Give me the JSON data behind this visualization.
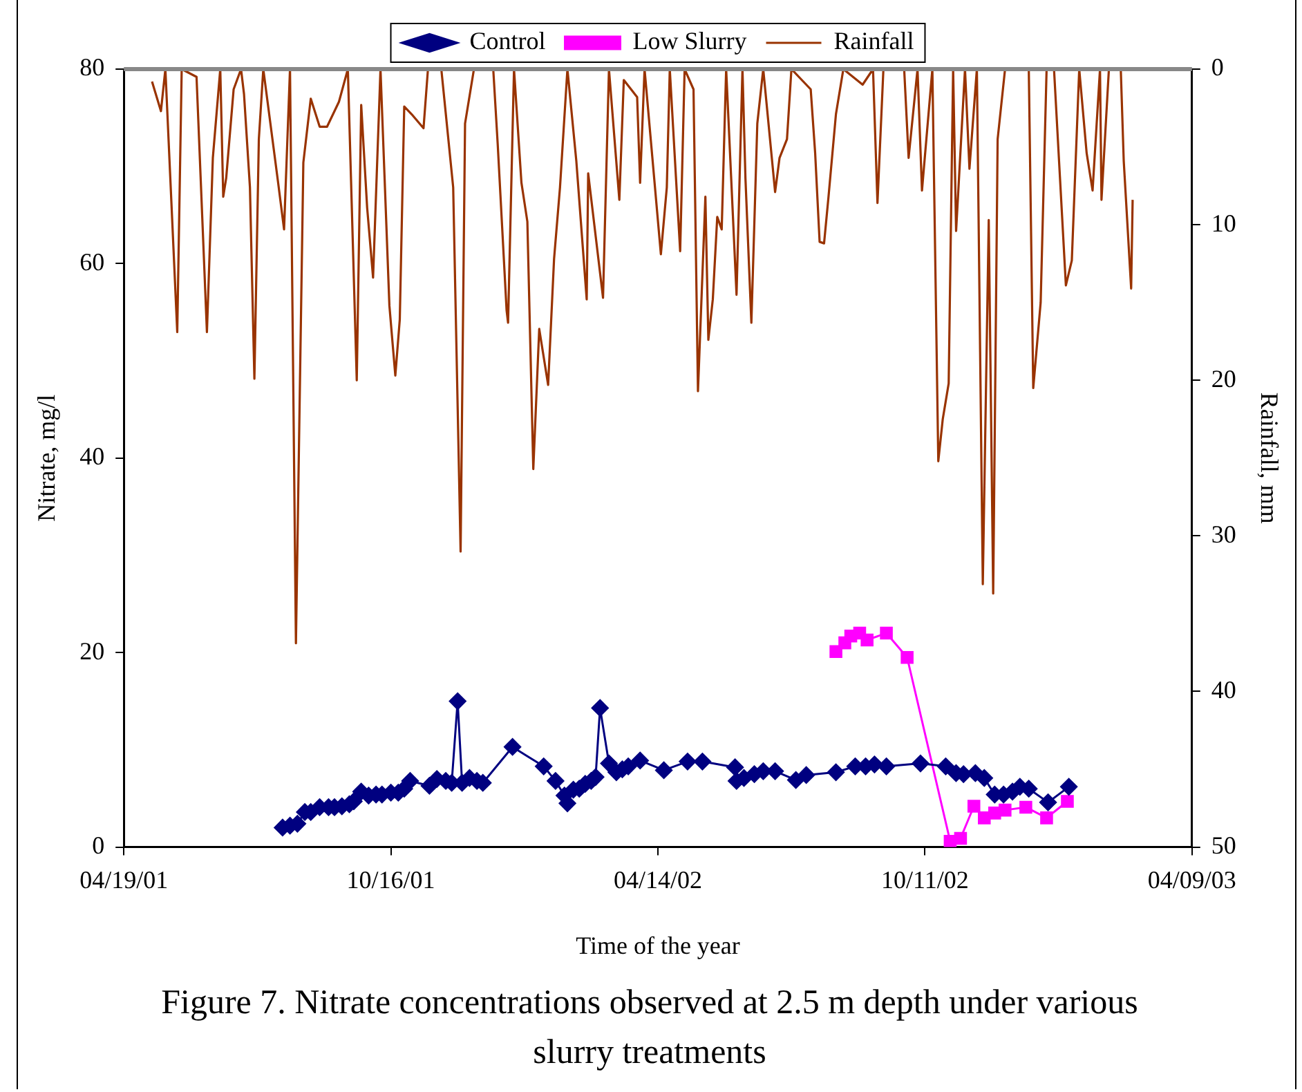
{
  "chart_data": {
    "type": "line",
    "xlabel": "Time of the year",
    "ylabel": "Nitrate, mg/l",
    "y2label": "Rainfall, mm",
    "annotations": [
      "Figure 7. Nitrate concentrations observed at 2.5 m depth under various slurry treatments"
    ],
    "legend": "top",
    "xlim": [
      "2001-04-19",
      "2003-04-09"
    ],
    "xticks": [
      {
        "value": "2001-04-19",
        "label": "04/19/01"
      },
      {
        "value": "2001-10-16",
        "label": "10/16/01"
      },
      {
        "value": "2002-04-14",
        "label": "04/14/02"
      },
      {
        "value": "2002-10-11",
        "label": "10/11/02"
      },
      {
        "value": "2003-04-09",
        "label": "04/09/03"
      }
    ],
    "ylim": [
      0,
      80
    ],
    "yticks": [
      0,
      20,
      40,
      60,
      80
    ],
    "y2lim": [
      50,
      0
    ],
    "y2ticks": [
      50,
      40,
      30,
      20,
      10,
      0
    ],
    "series": [
      {
        "name": "Control",
        "color": "#000080",
        "marker": "diamond",
        "x": [
          "2001-08-04",
          "2001-08-09",
          "2001-08-14",
          "2001-08-19",
          "2001-08-23",
          "2001-08-29",
          "2001-09-04",
          "2001-09-08",
          "2001-09-13",
          "2001-09-18",
          "2001-09-21",
          "2001-09-26",
          "2001-10-01",
          "2001-10-06",
          "2001-10-10",
          "2001-10-16",
          "2001-10-21",
          "2001-10-25",
          "2001-10-29",
          "2001-11-11",
          "2001-11-16",
          "2001-11-22",
          "2001-11-26",
          "2001-11-30",
          "2001-12-03",
          "2001-12-08",
          "2001-12-13",
          "2001-12-17",
          "2002-01-06",
          "2002-01-27",
          "2002-02-04",
          "2002-02-10",
          "2002-02-12",
          "2002-02-16",
          "2002-02-20",
          "2002-02-24",
          "2002-02-28",
          "2002-03-03",
          "2002-03-06",
          "2002-03-12",
          "2002-03-17",
          "2002-03-21",
          "2002-03-25",
          "2002-04-02",
          "2002-04-18",
          "2002-05-04",
          "2002-05-14",
          "2002-06-05",
          "2002-06-06",
          "2002-06-11",
          "2002-06-18",
          "2002-06-24",
          "2002-07-02",
          "2002-07-16",
          "2002-07-23",
          "2002-08-12",
          "2002-08-25",
          "2002-09-01",
          "2002-09-07",
          "2002-09-15",
          "2002-10-08",
          "2002-10-25",
          "2002-11-01",
          "2002-11-06",
          "2002-11-14",
          "2002-11-20",
          "2002-11-27",
          "2002-12-03",
          "2002-12-09",
          "2002-12-14",
          "2002-12-20",
          "2003-01-02",
          "2003-01-16"
        ],
        "values": [
          2.0,
          2.2,
          2.4,
          3.6,
          3.6,
          4.1,
          4.1,
          4.1,
          4.2,
          4.4,
          4.7,
          5.7,
          5.3,
          5.4,
          5.4,
          5.6,
          5.6,
          6.0,
          6.8,
          6.3,
          7.0,
          6.8,
          6.6,
          15.0,
          6.6,
          7.1,
          6.8,
          6.6,
          10.3,
          8.3,
          6.8,
          5.3,
          4.5,
          5.9,
          6.0,
          6.5,
          6.8,
          7.2,
          14.3,
          8.6,
          7.7,
          8.0,
          8.3,
          8.9,
          7.9,
          8.8,
          8.8,
          8.2,
          6.8,
          7.1,
          7.5,
          7.8,
          7.8,
          6.9,
          7.4,
          7.7,
          8.3,
          8.3,
          8.5,
          8.3,
          8.6,
          8.3,
          7.6,
          7.5,
          7.6,
          7.1,
          5.4,
          5.4,
          5.7,
          6.2,
          6.0,
          4.6,
          6.2
        ]
      },
      {
        "name": "Low Slurry",
        "color": "#ff00ff",
        "marker": "square",
        "x": [
          "2002-08-12",
          "2002-08-18",
          "2002-08-22",
          "2002-08-28",
          "2002-09-02",
          "2002-09-15",
          "2002-09-29",
          "2002-10-28",
          "2002-11-04",
          "2002-11-13",
          "2002-11-20",
          "2002-11-27",
          "2002-12-04",
          "2002-12-18",
          "2003-01-01",
          "2003-01-15"
        ],
        "values": [
          20.1,
          21.0,
          21.7,
          22.0,
          21.3,
          22.0,
          19.5,
          0.6,
          0.9,
          4.2,
          3.0,
          3.5,
          3.8,
          4.1,
          3.0,
          4.7
        ]
      },
      {
        "name": "Rainfall",
        "color": "#993300",
        "marker": "none",
        "axis": "y2",
        "x": [
          "2001-05-08",
          "2001-05-14",
          "2001-05-17",
          "2001-05-25",
          "2001-05-28",
          "2001-06-07",
          "2001-06-14",
          "2001-06-18",
          "2001-06-23",
          "2001-06-25",
          "2001-06-27",
          "2001-07-02",
          "2001-07-07",
          "2001-07-09",
          "2001-07-13",
          "2001-07-16",
          "2001-07-19",
          "2001-07-22",
          "2001-08-01",
          "2001-08-05",
          "2001-08-09",
          "2001-08-13",
          "2001-08-18",
          "2001-08-23",
          "2001-08-29",
          "2001-09-03",
          "2001-09-11",
          "2001-09-17",
          "2001-09-23",
          "2001-09-26",
          "2001-09-30",
          "2001-10-04",
          "2001-10-09",
          "2001-10-15",
          "2001-10-19",
          "2001-10-22",
          "2001-10-25",
          "2001-10-30",
          "2001-11-07",
          "2001-11-10",
          "2001-11-19",
          "2001-11-27",
          "2001-12-02",
          "2001-12-05",
          "2001-12-11",
          "2001-12-24",
          "2001-12-27",
          "2002-01-02",
          "2002-01-03",
          "2002-01-07",
          "2002-01-12",
          "2002-01-16",
          "2002-01-20",
          "2002-01-24",
          "2002-01-30",
          "2002-02-03",
          "2002-02-07",
          "2002-02-12",
          "2002-02-18",
          "2002-02-25",
          "2002-02-26",
          "2002-03-08",
          "2002-03-12",
          "2002-03-19",
          "2002-03-22",
          "2002-03-31",
          "2002-04-02",
          "2002-04-05",
          "2002-04-16",
          "2002-04-20",
          "2002-04-22",
          "2002-04-29",
          "2002-05-02",
          "2002-05-08",
          "2002-05-11",
          "2002-05-16",
          "2002-05-18",
          "2002-05-21",
          "2002-05-24",
          "2002-05-27",
          "2002-05-30",
          "2002-06-06",
          "2002-06-10",
          "2002-06-12",
          "2002-06-16",
          "2002-06-20",
          "2002-06-24",
          "2002-07-02",
          "2002-07-05",
          "2002-07-10",
          "2002-07-13",
          "2002-07-26",
          "2002-07-29",
          "2002-08-01",
          "2002-08-04",
          "2002-08-07",
          "2002-08-12",
          "2002-08-17",
          "2002-08-30",
          "2002-09-06",
          "2002-09-09",
          "2002-09-13",
          "2002-09-27",
          "2002-09-30",
          "2002-10-06",
          "2002-10-09",
          "2002-10-16",
          "2002-10-20",
          "2002-10-23",
          "2002-10-27",
          "2002-10-30",
          "2002-11-01",
          "2002-11-07",
          "2002-11-10",
          "2002-11-15",
          "2002-11-19",
          "2002-11-23",
          "2002-11-26",
          "2002-11-29",
          "2002-12-04",
          "2002-12-12",
          "2002-12-20",
          "2002-12-23",
          "2002-12-28",
          "2003-01-01",
          "2003-01-06",
          "2003-01-14",
          "2003-01-18",
          "2003-01-23",
          "2003-01-28",
          "2003-02-01",
          "2003-02-06",
          "2003-02-07",
          "2003-02-12",
          "2003-02-20",
          "2003-02-22",
          "2003-02-27",
          "2003-02-28"
        ],
        "values": [
          0.8,
          2.7,
          0,
          16.9,
          0,
          0.5,
          16.9,
          5.7,
          0,
          8.2,
          7.0,
          1.3,
          0,
          1.6,
          7.6,
          19.9,
          4.5,
          0,
          7.3,
          10.3,
          0,
          36.9,
          6.0,
          1.9,
          3.7,
          3.7,
          2.1,
          0,
          20.0,
          2.3,
          8.9,
          13.4,
          0,
          15.2,
          19.7,
          16.1,
          2.4,
          2.9,
          3.8,
          0,
          0,
          7.6,
          31.0,
          3.5,
          0,
          0,
          4.8,
          15.5,
          16.3,
          0,
          7.3,
          9.8,
          25.7,
          16.7,
          20.3,
          12.2,
          7.6,
          0,
          5.9,
          14.8,
          6.7,
          14.7,
          0,
          8.4,
          0.7,
          1.8,
          7.3,
          0,
          11.9,
          7.6,
          0,
          11.7,
          0,
          1.3,
          20.7,
          8.2,
          17.4,
          14.8,
          9.5,
          10.3,
          0,
          14.5,
          0,
          7.0,
          16.3,
          3.5,
          0,
          7.9,
          5.7,
          4.5,
          0,
          1.3,
          5.4,
          11.1,
          11.2,
          8.2,
          2.9,
          0,
          1.0,
          0,
          8.6,
          0,
          0,
          5.7,
          0,
          7.8,
          0,
          25.2,
          22.5,
          20.2,
          0,
          10.4,
          0,
          6.4,
          0,
          33.1,
          9.7,
          33.7,
          4.5,
          0,
          0,
          0,
          20.5,
          15.0,
          0,
          0,
          13.9,
          12.3,
          0,
          5.4,
          7.8,
          0,
          8.4,
          0,
          0,
          5.9,
          14.1,
          8.4
        ]
      }
    ]
  }
}
